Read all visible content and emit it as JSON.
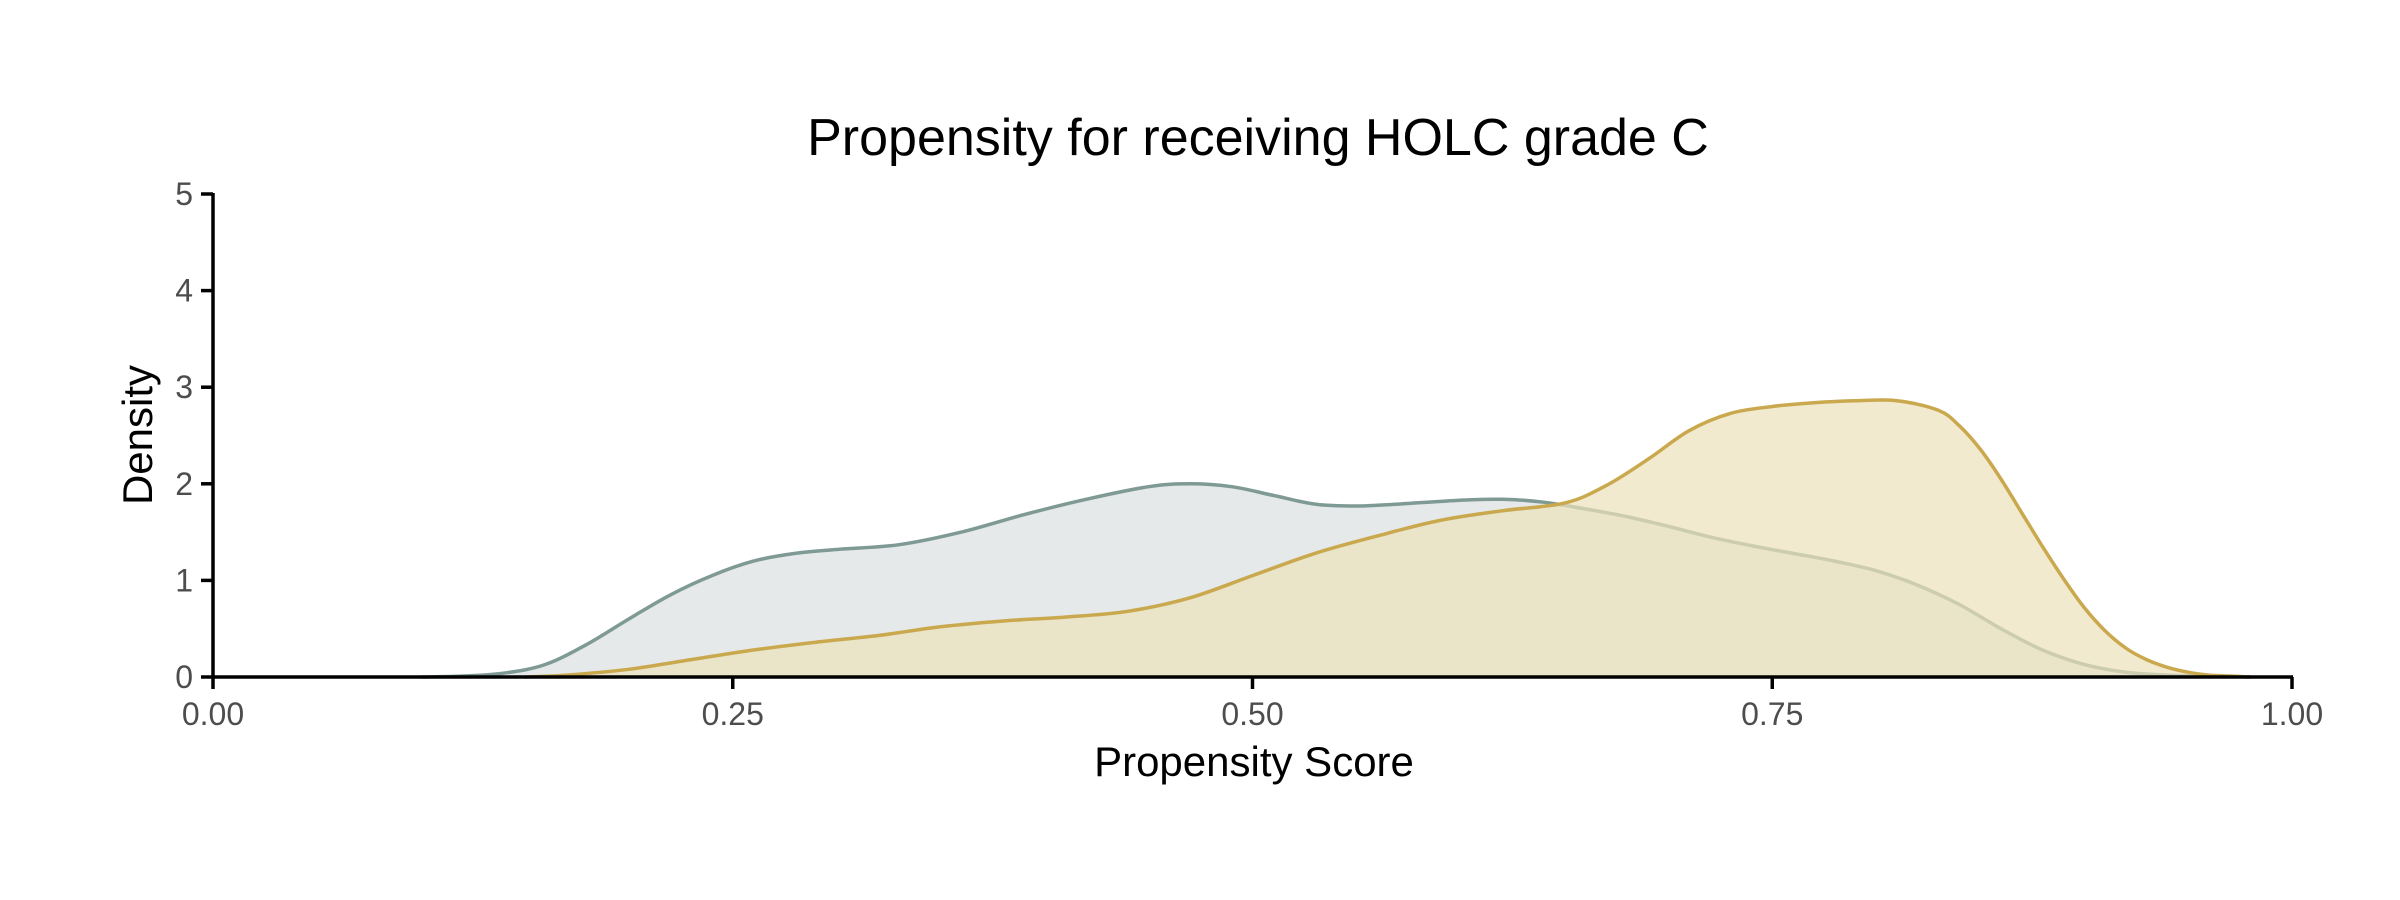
{
  "chart_data": {
    "type": "area",
    "title": "Propensity for receiving HOLC grade C",
    "xlabel": "Propensity Score",
    "ylabel": "Density",
    "xlim": [
      0,
      1
    ],
    "ylim": [
      0,
      5
    ],
    "x_ticks": [
      "0.00",
      "0.25",
      "0.50",
      "0.75",
      "1.00"
    ],
    "y_ticks": [
      "0",
      "1",
      "2",
      "3",
      "4",
      "5"
    ],
    "grid": false,
    "legend": "none",
    "series": [
      {
        "fill": "#dadfdf",
        "stroke": "#7f9a94",
        "x": [
          0.1,
          0.12,
          0.14,
          0.16,
          0.18,
          0.2,
          0.22,
          0.24,
          0.26,
          0.28,
          0.3,
          0.33,
          0.36,
          0.39,
          0.42,
          0.45,
          0.47,
          0.49,
          0.51,
          0.53,
          0.55,
          0.57,
          0.6,
          0.62,
          0.64,
          0.66,
          0.68,
          0.7,
          0.72,
          0.74,
          0.76,
          0.78,
          0.8,
          0.82,
          0.84,
          0.86,
          0.88,
          0.9,
          0.92,
          0.94,
          0.96,
          0.98
        ],
        "y": [
          0.0,
          0.01,
          0.04,
          0.13,
          0.34,
          0.6,
          0.85,
          1.05,
          1.2,
          1.28,
          1.32,
          1.37,
          1.5,
          1.68,
          1.84,
          1.97,
          2.0,
          1.97,
          1.88,
          1.79,
          1.77,
          1.79,
          1.83,
          1.84,
          1.81,
          1.74,
          1.66,
          1.56,
          1.45,
          1.36,
          1.28,
          1.2,
          1.1,
          0.95,
          0.75,
          0.5,
          0.28,
          0.13,
          0.05,
          0.02,
          0.01,
          0.0
        ]
      },
      {
        "fill": "#ede1bb",
        "stroke": "#c9a84e",
        "x": [
          0.15,
          0.17,
          0.2,
          0.23,
          0.26,
          0.29,
          0.32,
          0.35,
          0.38,
          0.41,
          0.44,
          0.47,
          0.5,
          0.53,
          0.56,
          0.59,
          0.62,
          0.65,
          0.67,
          0.69,
          0.71,
          0.73,
          0.75,
          0.77,
          0.79,
          0.81,
          0.83,
          0.84,
          0.85,
          0.86,
          0.87,
          0.88,
          0.89,
          0.9,
          0.91,
          0.92,
          0.93,
          0.94,
          0.95,
          0.96,
          0.97,
          0.98
        ],
        "y": [
          0.0,
          0.02,
          0.08,
          0.18,
          0.28,
          0.36,
          0.43,
          0.52,
          0.58,
          0.62,
          0.68,
          0.82,
          1.05,
          1.28,
          1.46,
          1.62,
          1.72,
          1.8,
          1.98,
          2.25,
          2.55,
          2.73,
          2.8,
          2.84,
          2.86,
          2.86,
          2.76,
          2.6,
          2.36,
          2.05,
          1.7,
          1.35,
          1.02,
          0.72,
          0.48,
          0.3,
          0.18,
          0.1,
          0.05,
          0.02,
          0.01,
          0.0
        ]
      }
    ]
  }
}
